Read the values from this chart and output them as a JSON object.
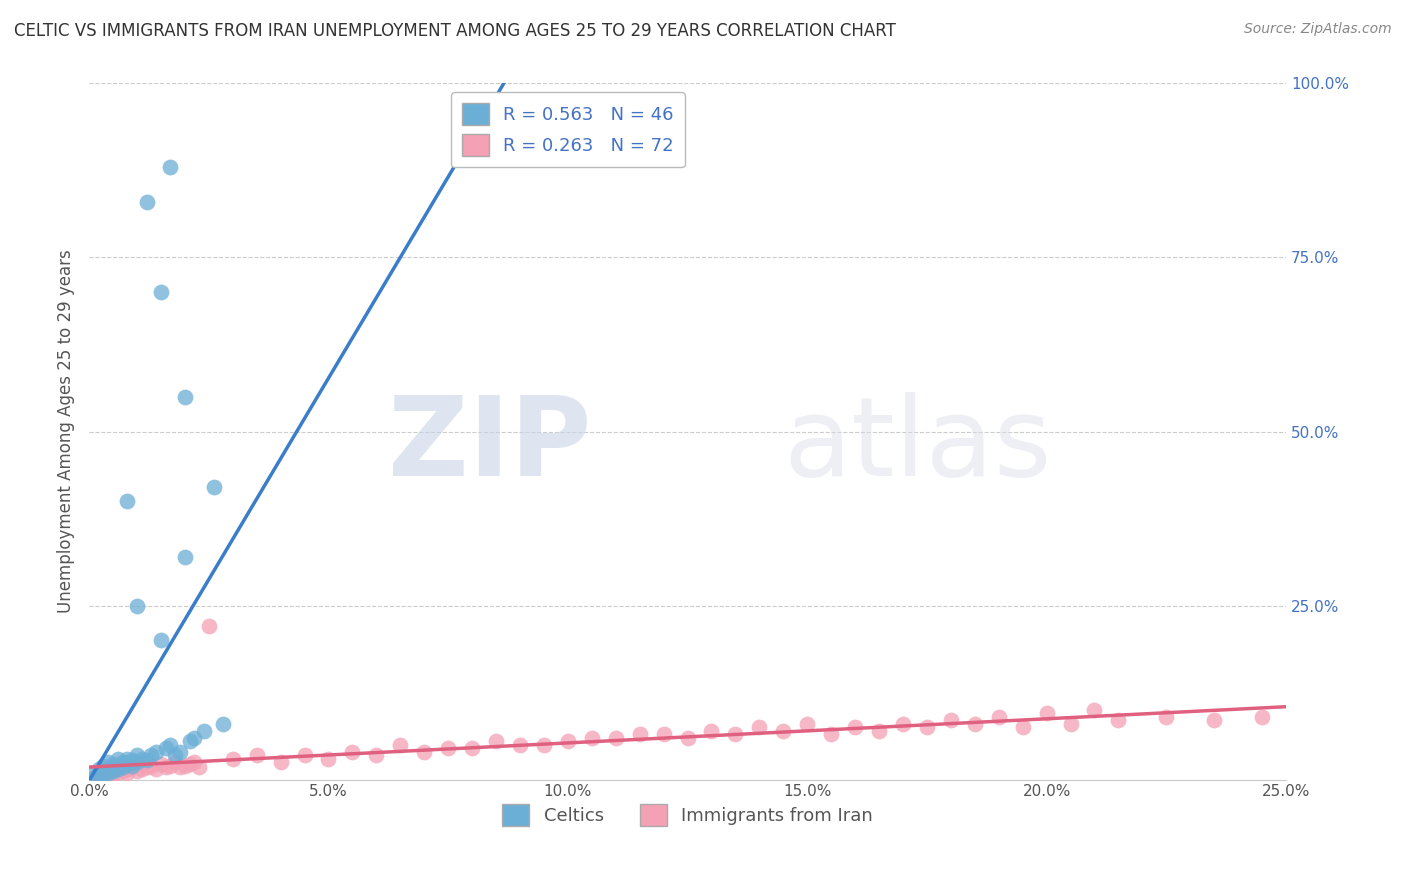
{
  "title": "CELTIC VS IMMIGRANTS FROM IRAN UNEMPLOYMENT AMONG AGES 25 TO 29 YEARS CORRELATION CHART",
  "source": "Source: ZipAtlas.com",
  "ylabel": "Unemployment Among Ages 25 to 29 years",
  "xlim": [
    0.0,
    0.25
  ],
  "ylim": [
    0.0,
    1.0
  ],
  "xtick_vals": [
    0.0,
    0.05,
    0.1,
    0.15,
    0.2,
    0.25
  ],
  "xtick_labels": [
    "0.0%",
    "5.0%",
    "10.0%",
    "15.0%",
    "20.0%",
    "25.0%"
  ],
  "ytick_vals": [
    0.0,
    0.25,
    0.5,
    0.75,
    1.0
  ],
  "ytick_labels": [
    "",
    "25.0%",
    "50.0%",
    "75.0%",
    "100.0%"
  ],
  "celtics_color": "#6baed6",
  "iran_color": "#f4a0b5",
  "reg_blue": "#3a7dc9",
  "reg_pink": "#e06080",
  "ytick_color": "#4472c4",
  "celtics_R": 0.563,
  "celtics_N": 46,
  "iran_R": 0.263,
  "iran_N": 72,
  "watermark_zip": "ZIP",
  "watermark_atlas": "atlas",
  "legend_label1": "Celtics",
  "legend_label2": "Immigrants from Iran",
  "celtics_x": [
    0.001,
    0.001,
    0.002,
    0.002,
    0.002,
    0.003,
    0.003,
    0.003,
    0.004,
    0.004,
    0.004,
    0.005,
    0.005,
    0.005,
    0.006,
    0.006,
    0.006,
    0.007,
    0.007,
    0.008,
    0.008,
    0.009,
    0.009,
    0.01,
    0.01,
    0.011,
    0.012,
    0.013,
    0.014,
    0.015,
    0.016,
    0.017,
    0.018,
    0.019,
    0.02,
    0.021,
    0.022,
    0.024,
    0.026,
    0.028,
    0.012,
    0.015,
    0.017,
    0.02,
    0.008,
    0.01
  ],
  "celtics_y": [
    0.003,
    0.008,
    0.005,
    0.01,
    0.015,
    0.008,
    0.012,
    0.02,
    0.01,
    0.015,
    0.025,
    0.018,
    0.012,
    0.022,
    0.015,
    0.02,
    0.03,
    0.018,
    0.025,
    0.022,
    0.03,
    0.02,
    0.028,
    0.025,
    0.035,
    0.03,
    0.028,
    0.035,
    0.04,
    0.2,
    0.045,
    0.05,
    0.035,
    0.04,
    0.32,
    0.055,
    0.06,
    0.07,
    0.42,
    0.08,
    0.83,
    0.7,
    0.88,
    0.55,
    0.4,
    0.25
  ],
  "iran_x": [
    0.001,
    0.002,
    0.002,
    0.003,
    0.003,
    0.004,
    0.004,
    0.005,
    0.005,
    0.006,
    0.006,
    0.007,
    0.007,
    0.008,
    0.008,
    0.009,
    0.01,
    0.011,
    0.012,
    0.013,
    0.014,
    0.015,
    0.016,
    0.017,
    0.018,
    0.019,
    0.02,
    0.021,
    0.022,
    0.023,
    0.025,
    0.03,
    0.035,
    0.04,
    0.045,
    0.05,
    0.055,
    0.065,
    0.075,
    0.085,
    0.095,
    0.105,
    0.115,
    0.125,
    0.135,
    0.145,
    0.155,
    0.165,
    0.175,
    0.185,
    0.195,
    0.205,
    0.215,
    0.225,
    0.235,
    0.245,
    0.06,
    0.07,
    0.08,
    0.09,
    0.1,
    0.11,
    0.12,
    0.13,
    0.14,
    0.15,
    0.16,
    0.17,
    0.18,
    0.19,
    0.2,
    0.21
  ],
  "iran_y": [
    0.003,
    0.005,
    0.008,
    0.004,
    0.01,
    0.007,
    0.012,
    0.008,
    0.015,
    0.01,
    0.018,
    0.012,
    0.02,
    0.01,
    0.015,
    0.018,
    0.012,
    0.015,
    0.018,
    0.02,
    0.015,
    0.022,
    0.018,
    0.02,
    0.025,
    0.018,
    0.02,
    0.022,
    0.025,
    0.018,
    0.22,
    0.03,
    0.035,
    0.025,
    0.035,
    0.03,
    0.04,
    0.05,
    0.045,
    0.055,
    0.05,
    0.06,
    0.065,
    0.06,
    0.065,
    0.07,
    0.065,
    0.07,
    0.075,
    0.08,
    0.075,
    0.08,
    0.085,
    0.09,
    0.085,
    0.09,
    0.035,
    0.04,
    0.045,
    0.05,
    0.055,
    0.06,
    0.065,
    0.07,
    0.075,
    0.08,
    0.075,
    0.08,
    0.085,
    0.09,
    0.095,
    0.1
  ]
}
